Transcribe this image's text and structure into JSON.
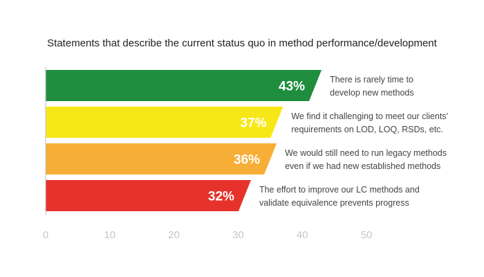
{
  "chart_data": {
    "type": "bar",
    "orientation": "horizontal",
    "title": "Statements that describe the current status quo in method performance/development",
    "xlim": [
      0,
      50
    ],
    "x_ticks": [
      "0",
      "10",
      "20",
      "30",
      "40",
      "50"
    ],
    "grid": false,
    "bars": [
      {
        "value": 43,
        "value_label": "43%",
        "color": "#1e8e3e",
        "label_lines": [
          "There is rarely time to",
          "develop new methods"
        ]
      },
      {
        "value": 37,
        "value_label": "37%",
        "color": "#f7e717",
        "label_lines": [
          "We find it challenging to meet our clients'",
          "requirements on LOD, LOQ, RSDs, etc."
        ]
      },
      {
        "value": 36,
        "value_label": "36%",
        "color": "#f7ae36",
        "label_lines": [
          "We would still need to run legacy methods",
          "even if we had new established methods"
        ]
      },
      {
        "value": 32,
        "value_label": "32%",
        "color": "#e7322b",
        "label_lines": [
          "The effort to improve our LC methods and",
          "validate equivalence prevents progress"
        ]
      }
    ]
  }
}
